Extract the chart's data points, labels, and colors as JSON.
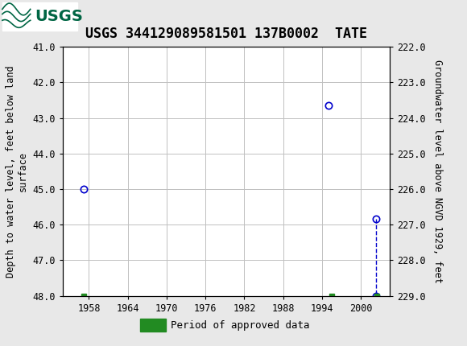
{
  "title": "USGS 344129089581501 137B0002  TATE",
  "ylabel_left": "Depth to water level, feet below land\nsurface",
  "ylabel_right": "Groundwater level above NGVD 1929, feet",
  "ylim_left": [
    41.0,
    48.0
  ],
  "ylim_right": [
    222.0,
    229.0
  ],
  "xlim": [
    1954.0,
    2004.5
  ],
  "xticks": [
    1958,
    1964,
    1970,
    1976,
    1982,
    1988,
    1994,
    2000
  ],
  "yticks_left": [
    41.0,
    42.0,
    43.0,
    44.0,
    45.0,
    46.0,
    47.0,
    48.0
  ],
  "yticks_right": [
    229.0,
    228.0,
    227.0,
    226.0,
    225.0,
    224.0,
    223.0,
    222.0
  ],
  "data_points": [
    {
      "year": 1957.2,
      "depth": 45.0
    },
    {
      "year": 1995.0,
      "depth": 42.65
    },
    {
      "year": 2002.3,
      "depth": 45.83
    },
    {
      "year": 2002.3,
      "depth": 48.0
    }
  ],
  "dashed_line_x": [
    2002.3,
    2002.3
  ],
  "dashed_line_y": [
    45.83,
    48.0
  ],
  "green_squares": [
    {
      "year": 1957.2,
      "depth": 48.0
    },
    {
      "year": 1995.5,
      "depth": 48.0
    },
    {
      "year": 2002.5,
      "depth": 48.0
    }
  ],
  "header_color": "#006644",
  "header_text_color": "#ffffff",
  "point_color": "#0000cc",
  "green_square_color": "#228B22",
  "background_color": "#e8e8e8",
  "plot_bg_color": "#ffffff",
  "grid_color": "#c0c0c0",
  "font_family": "monospace",
  "title_fontsize": 12,
  "axis_label_fontsize": 8.5,
  "tick_fontsize": 8.5,
  "legend_fontsize": 9
}
